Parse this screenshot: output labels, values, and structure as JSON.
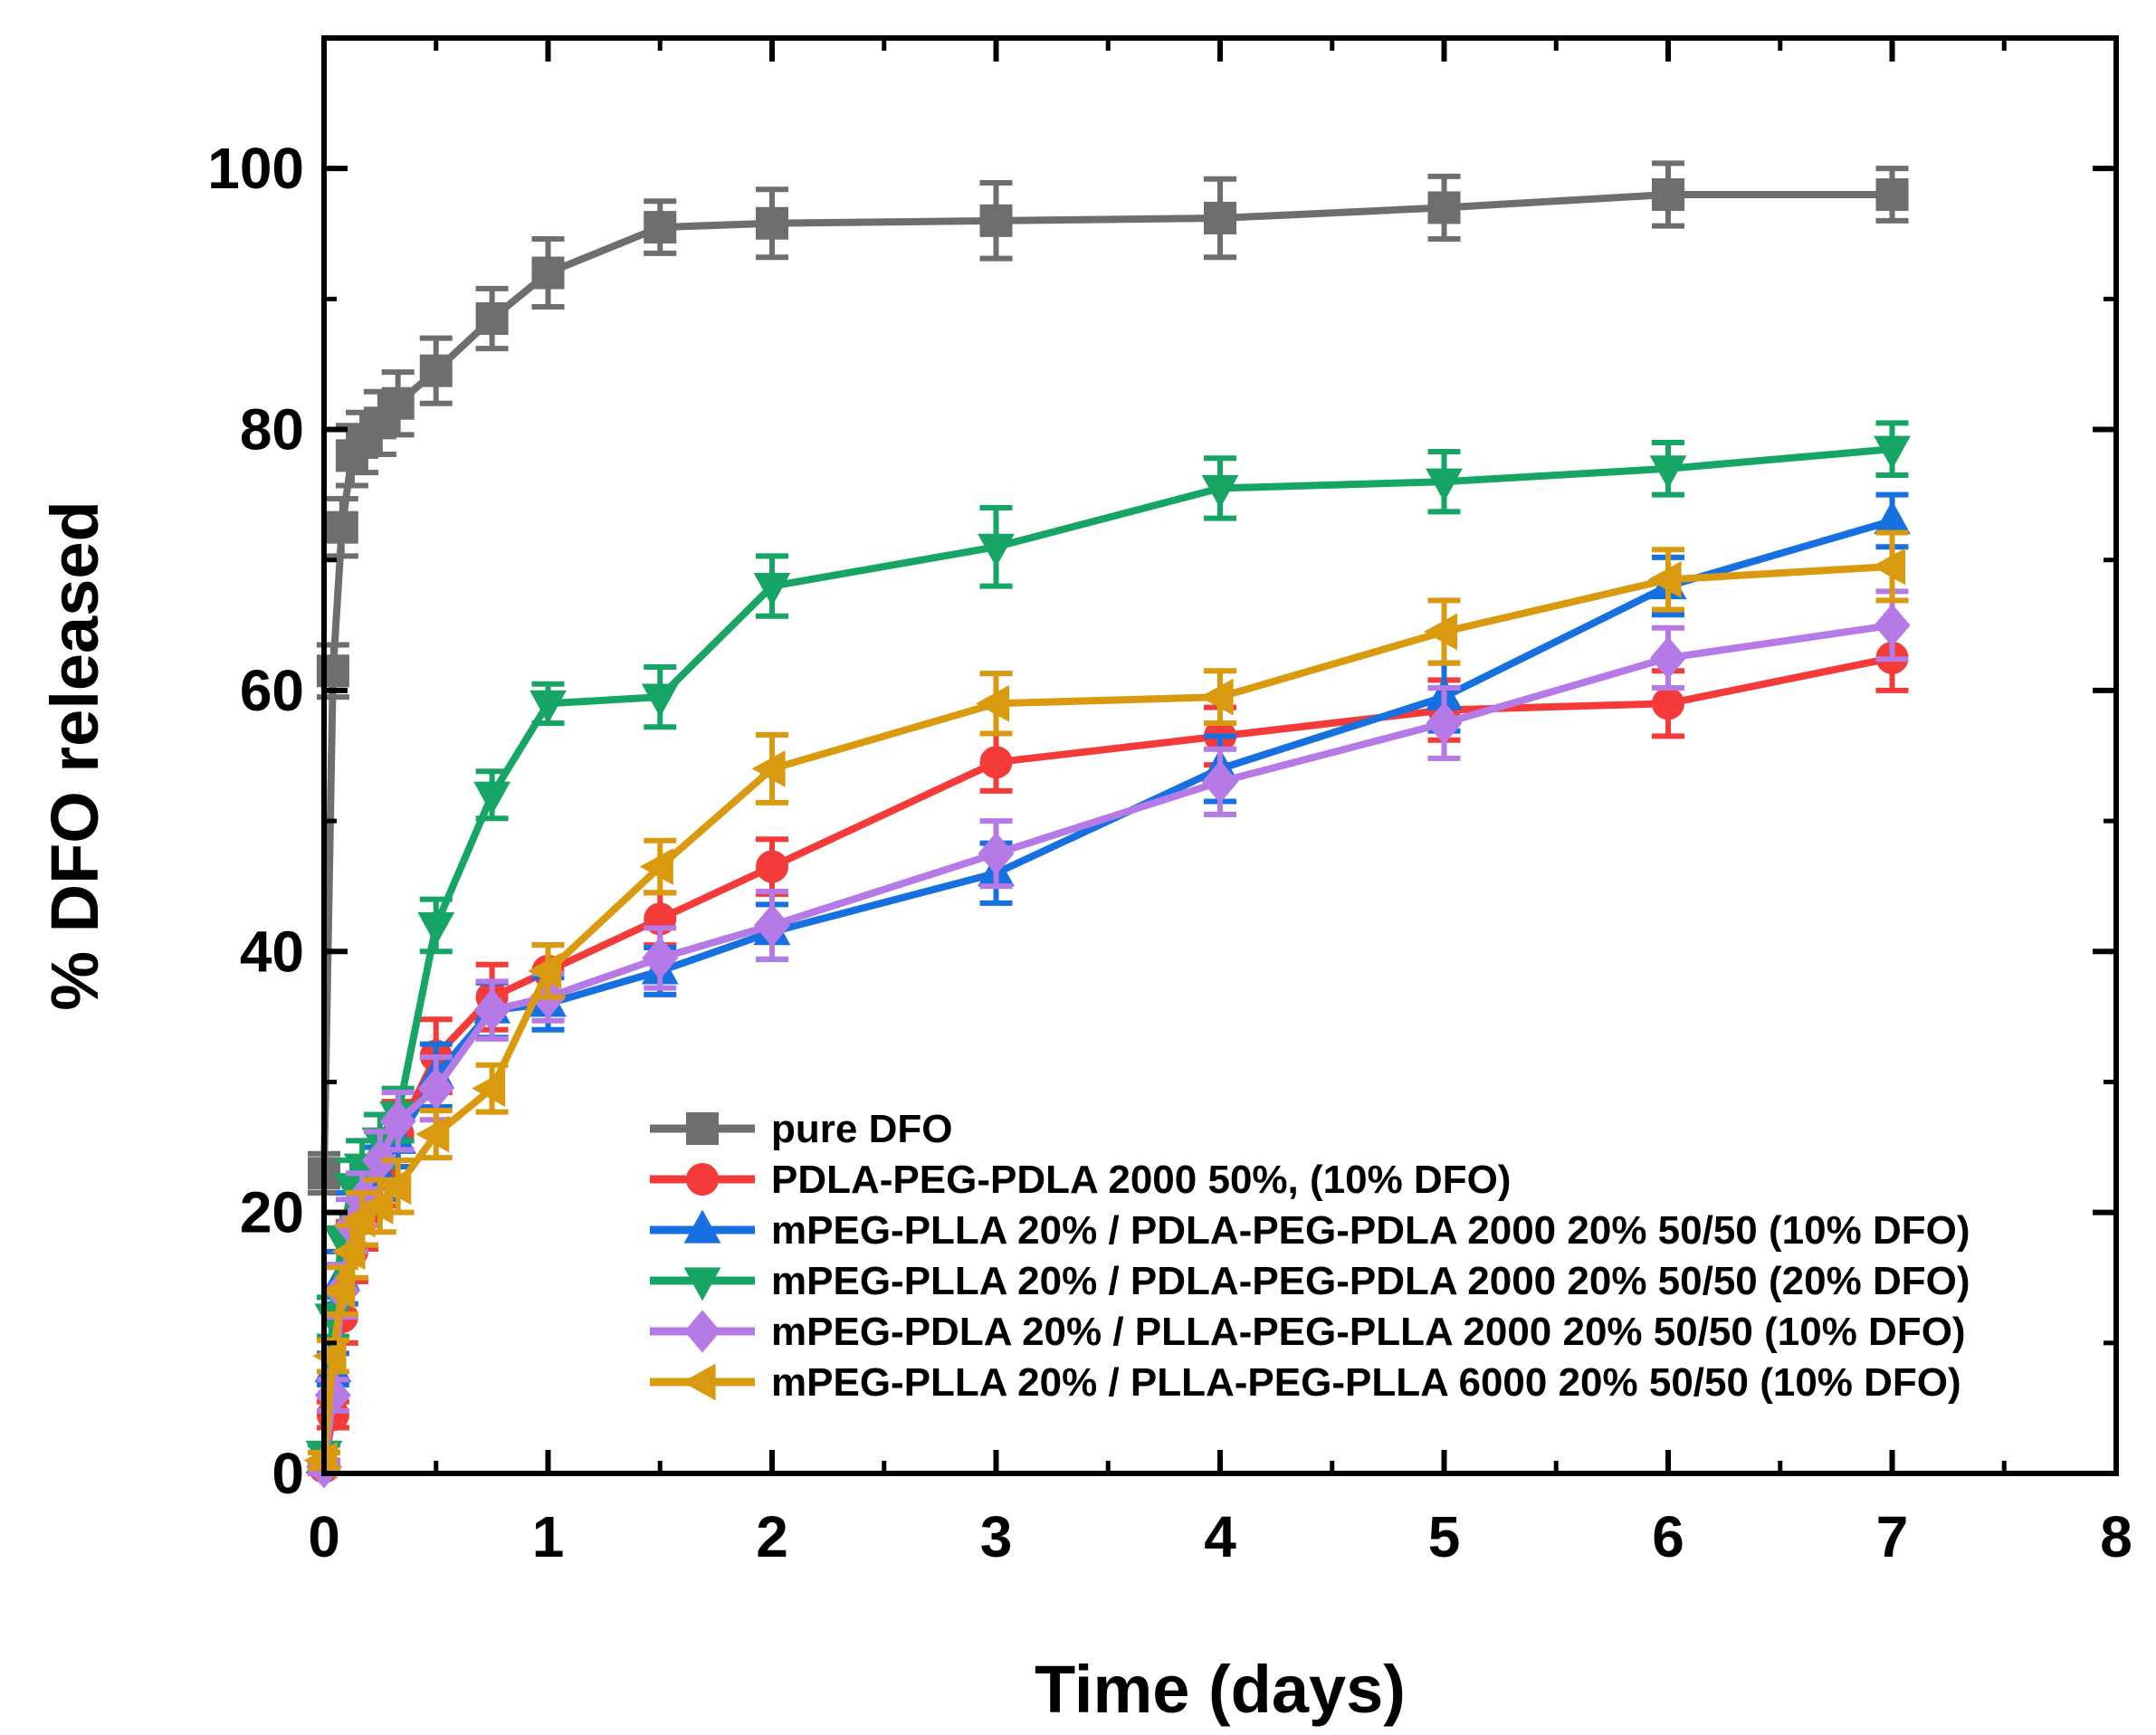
{
  "chart_data": {
    "type": "line",
    "title": "",
    "xlabel": "Time (days)",
    "ylabel": "% DFO released",
    "xlim": [
      0,
      8
    ],
    "ylim": [
      0,
      110
    ],
    "xticks": [
      0,
      1,
      2,
      3,
      4,
      5,
      6,
      7,
      8
    ],
    "yticks": [
      0,
      20,
      40,
      60,
      80,
      100
    ],
    "legend_position": "bottom-right",
    "series": [
      {
        "name": "pure DFO",
        "color": "#6e6e6e",
        "marker": "square",
        "x": [
          0,
          0.04,
          0.08,
          0.125,
          0.17,
          0.25,
          0.33,
          0.5,
          0.75,
          1,
          1.5,
          2,
          3,
          4,
          5,
          6,
          7
        ],
        "y": [
          23,
          61.5,
          72.5,
          78,
          79,
          80.5,
          82,
          84.5,
          88.5,
          92,
          95.5,
          95.8,
          96,
          96.2,
          97,
          98,
          98
        ],
        "err": [
          1.5,
          2,
          2.2,
          2.3,
          2.3,
          2.4,
          2.4,
          2.5,
          2.3,
          2.6,
          2,
          2.6,
          2.9,
          3,
          2.4,
          2.4,
          2
        ]
      },
      {
        "name": "PDLA-PEG-PDLA 2000 50%, (10% DFO)",
        "color": "#f53a3a",
        "marker": "circle",
        "x": [
          0,
          0.04,
          0.08,
          0.125,
          0.17,
          0.25,
          0.33,
          0.5,
          0.75,
          1,
          1.5,
          2,
          3,
          4,
          5,
          6,
          7
        ],
        "y": [
          0.5,
          4.5,
          12,
          17,
          19.5,
          23,
          26,
          32,
          36.5,
          38.5,
          42.5,
          46.5,
          54.5,
          56.5,
          58.5,
          59,
          62.5
        ],
        "err": [
          0.5,
          1,
          2,
          2.3,
          2.3,
          2.5,
          2.5,
          2.8,
          2.5,
          2,
          2,
          2.1,
          2.2,
          2.2,
          2.3,
          2.5,
          2.5
        ]
      },
      {
        "name": "mPEG-PLLA 20% / PDLA-PEG-PDLA 2000 20% 50/50 (10% DFO)",
        "color": "#1670e0",
        "marker": "triangle-up",
        "x": [
          0,
          0.04,
          0.08,
          0.125,
          0.17,
          0.25,
          0.33,
          0.5,
          0.75,
          1,
          1.5,
          2,
          3,
          4,
          5,
          6,
          7
        ],
        "y": [
          1,
          8,
          15,
          19.5,
          21,
          23,
          25.5,
          30.5,
          35.5,
          36,
          38.5,
          41.5,
          46,
          54,
          59.5,
          68,
          73
        ],
        "err": [
          0.6,
          1.2,
          2,
          2,
          2,
          2,
          2,
          2.4,
          2.1,
          2,
          1.8,
          2.1,
          2.3,
          2.5,
          2.6,
          2.2,
          2
        ]
      },
      {
        "name": "mPEG-PLLA 20% / PDLA-PEG-PDLA 2000 20% 50/50 (20% DFO)",
        "color": "#17a566",
        "marker": "triangle-down",
        "x": [
          0,
          0.04,
          0.08,
          0.125,
          0.17,
          0.25,
          0.33,
          0.5,
          0.75,
          1,
          1.5,
          2,
          3,
          4,
          5,
          6,
          7
        ],
        "y": [
          1.5,
          12,
          18,
          22,
          23.5,
          25.5,
          27.5,
          42,
          52,
          59,
          59.5,
          68,
          71,
          75.5,
          76,
          77,
          78.5
        ],
        "err": [
          0.7,
          1.5,
          2,
          2,
          2,
          2,
          2,
          2,
          1.8,
          1.5,
          2.3,
          2.3,
          3,
          2.3,
          2.3,
          2,
          2
        ]
      },
      {
        "name": "mPEG-PDLA 20% / PLLA-PEG-PLLA 2000 20% 50/50 (10% DFO)",
        "color": "#b57ae6",
        "marker": "diamond",
        "x": [
          0,
          0.04,
          0.08,
          0.125,
          0.17,
          0.25,
          0.33,
          0.5,
          0.75,
          1,
          1.5,
          2,
          3,
          4,
          5,
          6,
          7
        ],
        "y": [
          0.5,
          6,
          14,
          19,
          21,
          24,
          27,
          29.5,
          35.5,
          36.5,
          39.5,
          42,
          47.5,
          53,
          57.5,
          62.5,
          65
        ],
        "err": [
          0.5,
          1.2,
          2,
          2,
          2,
          2.2,
          2.2,
          2.4,
          2.2,
          1.8,
          2.3,
          2.6,
          2.5,
          2.5,
          2.7,
          2.3,
          2.6
        ]
      },
      {
        "name": "mPEG-PLLA 20% / PLLA-PEG-PLLA 6000 20% 50/50 (10% DFO)",
        "color": "#d99a0f",
        "marker": "triangle-left",
        "x": [
          0,
          0.04,
          0.08,
          0.125,
          0.17,
          0.25,
          0.33,
          0.5,
          0.75,
          1,
          1.5,
          2,
          3,
          4,
          5,
          6,
          7
        ],
        "y": [
          1,
          9,
          14,
          17,
          19.5,
          20.5,
          22,
          26,
          29.5,
          38.5,
          46.5,
          54,
          59,
          59.5,
          64.5,
          68.5,
          69.5
        ],
        "err": [
          0.6,
          1.2,
          1.8,
          2,
          2,
          2,
          2,
          1.8,
          1.8,
          2,
          2,
          2.6,
          2.3,
          2,
          2.4,
          2.3,
          2.6
        ]
      }
    ]
  }
}
